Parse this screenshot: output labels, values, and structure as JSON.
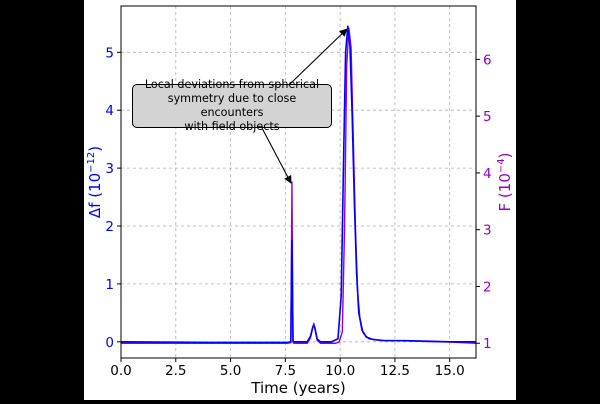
{
  "chart_data": {
    "type": "line",
    "xlabel": "Time (years)",
    "x_ticks": [
      "0.0",
      "2.5",
      "5.0",
      "7.5",
      "10.0",
      "12.5",
      "15.0"
    ],
    "x_tick_values": [
      0.0,
      2.5,
      5.0,
      7.5,
      10.0,
      12.5,
      15.0
    ],
    "xlim": [
      0,
      16.2
    ],
    "y_left": {
      "label_main": "Δf (10",
      "label_exp": "−12",
      "label_close": ")",
      "ylim": [
        -0.28,
        5.8
      ],
      "ticks": [
        "0",
        "1",
        "2",
        "3",
        "4",
        "5"
      ],
      "tick_values": [
        0,
        1,
        2,
        3,
        4,
        5
      ],
      "color": "#0000ff"
    },
    "y_right": {
      "label_main": "F (10",
      "label_exp": "−4",
      "label_close": ")",
      "ylim": [
        0.74,
        6.94
      ],
      "ticks": [
        "1",
        "2",
        "3",
        "4",
        "5",
        "6"
      ],
      "tick_values": [
        1,
        2,
        3,
        4,
        5,
        6
      ],
      "color": "#9400d3"
    },
    "grid": true,
    "series": [
      {
        "name": "Δf",
        "axis": "left",
        "color": "#0000ff",
        "x": [
          0,
          4.0,
          7.6,
          7.75,
          7.8,
          7.85,
          7.9,
          8.0,
          8.5,
          8.65,
          8.75,
          8.8,
          8.85,
          8.95,
          9.1,
          9.6,
          9.9,
          10.05,
          10.15,
          10.25,
          10.35,
          10.45,
          10.55,
          10.65,
          10.75,
          10.85,
          11.0,
          11.2,
          11.5,
          12.0,
          13.0,
          14.0,
          15.0,
          16.2
        ],
        "y": [
          0.0,
          -0.01,
          -0.01,
          0.0,
          1.75,
          0.01,
          0.0,
          0.0,
          0.0,
          0.1,
          0.25,
          0.28,
          0.24,
          0.05,
          0.0,
          0.0,
          0.05,
          0.8,
          3.0,
          5.0,
          5.45,
          5.1,
          3.9,
          2.4,
          1.2,
          0.5,
          0.2,
          0.08,
          0.04,
          0.02,
          0.02,
          0.01,
          0.0,
          0.0
        ]
      },
      {
        "name": "F",
        "axis": "right",
        "color": "#9400d3",
        "x": [
          0,
          4.0,
          7.6,
          7.75,
          7.8,
          7.85,
          7.9,
          8.0,
          8.5,
          8.65,
          8.75,
          8.8,
          8.85,
          8.95,
          9.1,
          9.5,
          9.8,
          9.95,
          10.1,
          10.2,
          10.3,
          10.4,
          10.5,
          10.6,
          10.7,
          10.8,
          10.9,
          11.05,
          11.3,
          11.6,
          12.0,
          13.0,
          14.0,
          15.0,
          16.2
        ],
        "y": [
          1.0,
          1.0,
          1.0,
          1.01,
          3.84,
          1.01,
          1.0,
          1.0,
          1.0,
          1.1,
          1.28,
          1.35,
          1.25,
          1.05,
          1.0,
          1.0,
          1.0,
          1.02,
          1.2,
          3.0,
          5.9,
          6.55,
          6.2,
          4.6,
          3.0,
          1.9,
          1.45,
          1.18,
          1.08,
          1.06,
          1.05,
          1.04,
          1.03,
          1.02,
          1.0
        ]
      }
    ],
    "annotation": {
      "lines": [
        "Local deviations from spherical",
        "symmetry due to close encounters",
        "with field objects"
      ],
      "arrows": [
        {
          "x": 7.8,
          "y_right": 3.84
        },
        {
          "x": 10.35,
          "y_right": 6.55
        }
      ]
    }
  }
}
